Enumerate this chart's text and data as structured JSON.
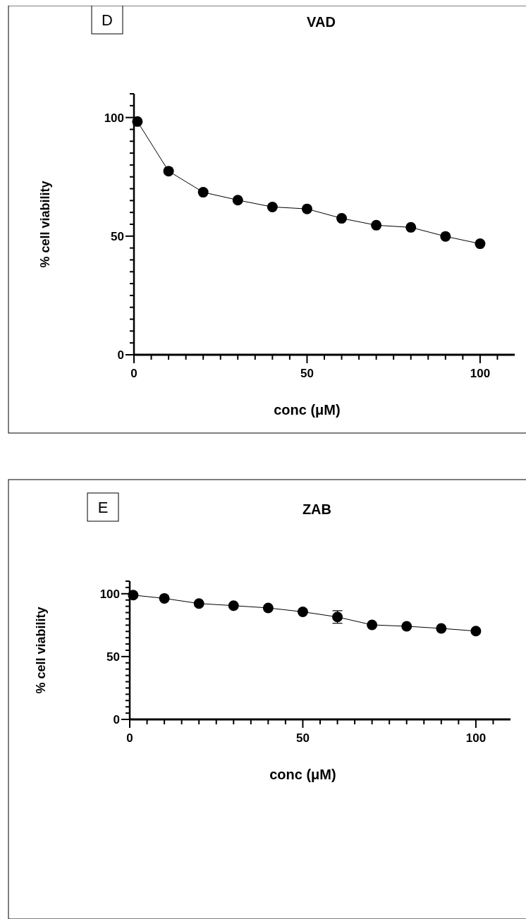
{
  "chart_data": [
    {
      "type": "line",
      "title": "VAD",
      "xlabel": "conc (μM)",
      "ylabel": "% cell viability",
      "annotations": [
        "D"
      ],
      "color": "#000000",
      "marker": "circle",
      "line_style": "solid",
      "x": [
        1,
        10,
        20,
        30,
        40,
        50,
        60,
        70,
        80,
        90,
        100
      ],
      "values": [
        98.3,
        77.4,
        68.5,
        65.2,
        62.3,
        61.5,
        57.5,
        54.6,
        53.7,
        49.9,
        46.8
      ],
      "xlim": [
        0,
        110
      ],
      "ylim": [
        0,
        110
      ],
      "xticks": [
        0,
        {
          "value": 5,
          "label": null
        },
        {
          "value": 10,
          "label": null
        },
        {
          "value": 15,
          "label": null
        },
        {
          "value": 20,
          "label": null
        },
        {
          "value": 25,
          "label": null
        },
        {
          "value": 30,
          "label": null
        },
        {
          "value": 35,
          "label": null
        },
        {
          "value": 40,
          "label": null
        },
        {
          "value": 45,
          "label": null
        },
        50,
        {
          "value": 55,
          "label": null
        },
        {
          "value": 60,
          "label": null
        },
        {
          "value": 65,
          "label": null
        },
        {
          "value": 70,
          "label": null
        },
        {
          "value": 75,
          "label": null
        },
        {
          "value": 80,
          "label": null
        },
        {
          "value": 85,
          "label": null
        },
        {
          "value": 90,
          "label": null
        },
        {
          "value": 95,
          "label": null
        },
        100,
        {
          "value": 105,
          "label": null
        }
      ],
      "yticks": [
        0,
        {
          "value": 5,
          "label": null
        },
        {
          "value": 10,
          "label": null
        },
        {
          "value": 15,
          "label": null
        },
        {
          "value": 20,
          "label": null
        },
        {
          "value": 25,
          "label": null
        },
        {
          "value": 30,
          "label": null
        },
        {
          "value": 35,
          "label": null
        },
        {
          "value": 40,
          "label": null
        },
        {
          "value": 45,
          "label": null
        },
        50,
        {
          "value": 55,
          "label": null
        },
        {
          "value": 60,
          "label": null
        },
        {
          "value": 65,
          "label": null
        },
        {
          "value": 70,
          "label": null
        },
        {
          "value": 75,
          "label": null
        },
        {
          "value": 80,
          "label": null
        },
        {
          "value": 85,
          "label": null
        },
        {
          "value": 90,
          "label": null
        },
        {
          "value": 95,
          "label": null
        },
        100,
        {
          "value": 105,
          "label": null
        },
        {
          "value": 110,
          "label": null
        }
      ]
    },
    {
      "type": "line",
      "title": "ZAB",
      "xlabel": "conc (μM)",
      "ylabel": "% cell viability",
      "annotations": [
        "E"
      ],
      "color": "#000000",
      "marker": "circle",
      "line_style": "solid",
      "x": [
        1,
        10,
        20,
        30,
        40,
        50,
        60,
        70,
        80,
        90,
        100
      ],
      "values": [
        98.9,
        96.3,
        92.2,
        90.5,
        88.7,
        85.6,
        81.5,
        75.2,
        74.1,
        72.4,
        70.3
      ],
      "errors": [
        null,
        null,
        null,
        null,
        null,
        null,
        5,
        null,
        null,
        null,
        null
      ],
      "xlim": [
        0,
        110
      ],
      "ylim": [
        0,
        110
      ],
      "xticks": [
        0,
        {
          "value": 5,
          "label": null
        },
        {
          "value": 10,
          "label": null
        },
        {
          "value": 15,
          "label": null
        },
        {
          "value": 20,
          "label": null
        },
        {
          "value": 25,
          "label": null
        },
        {
          "value": 30,
          "label": null
        },
        {
          "value": 35,
          "label": null
        },
        {
          "value": 40,
          "label": null
        },
        {
          "value": 45,
          "label": null
        },
        50,
        {
          "value": 55,
          "label": null
        },
        {
          "value": 60,
          "label": null
        },
        {
          "value": 65,
          "label": null
        },
        {
          "value": 70,
          "label": null
        },
        {
          "value": 75,
          "label": null
        },
        {
          "value": 80,
          "label": null
        },
        {
          "value": 85,
          "label": null
        },
        {
          "value": 90,
          "label": null
        },
        {
          "value": 95,
          "label": null
        },
        100,
        {
          "value": 105,
          "label": null
        }
      ],
      "yticks": [
        0,
        {
          "value": 5,
          "label": null
        },
        {
          "value": 10,
          "label": null
        },
        {
          "value": 15,
          "label": null
        },
        {
          "value": 20,
          "label": null
        },
        {
          "value": 25,
          "label": null
        },
        {
          "value": 30,
          "label": null
        },
        {
          "value": 35,
          "label": null
        },
        {
          "value": 40,
          "label": null
        },
        {
          "value": 45,
          "label": null
        },
        50,
        {
          "value": 55,
          "label": null
        },
        {
          "value": 60,
          "label": null
        },
        {
          "value": 65,
          "label": null
        },
        {
          "value": 70,
          "label": null
        },
        {
          "value": 75,
          "label": null
        },
        {
          "value": 80,
          "label": null
        },
        {
          "value": 85,
          "label": null
        },
        {
          "value": 90,
          "label": null
        },
        {
          "value": 95,
          "label": null
        },
        100,
        {
          "value": 105,
          "label": null
        },
        {
          "value": 110,
          "label": null
        }
      ]
    }
  ]
}
